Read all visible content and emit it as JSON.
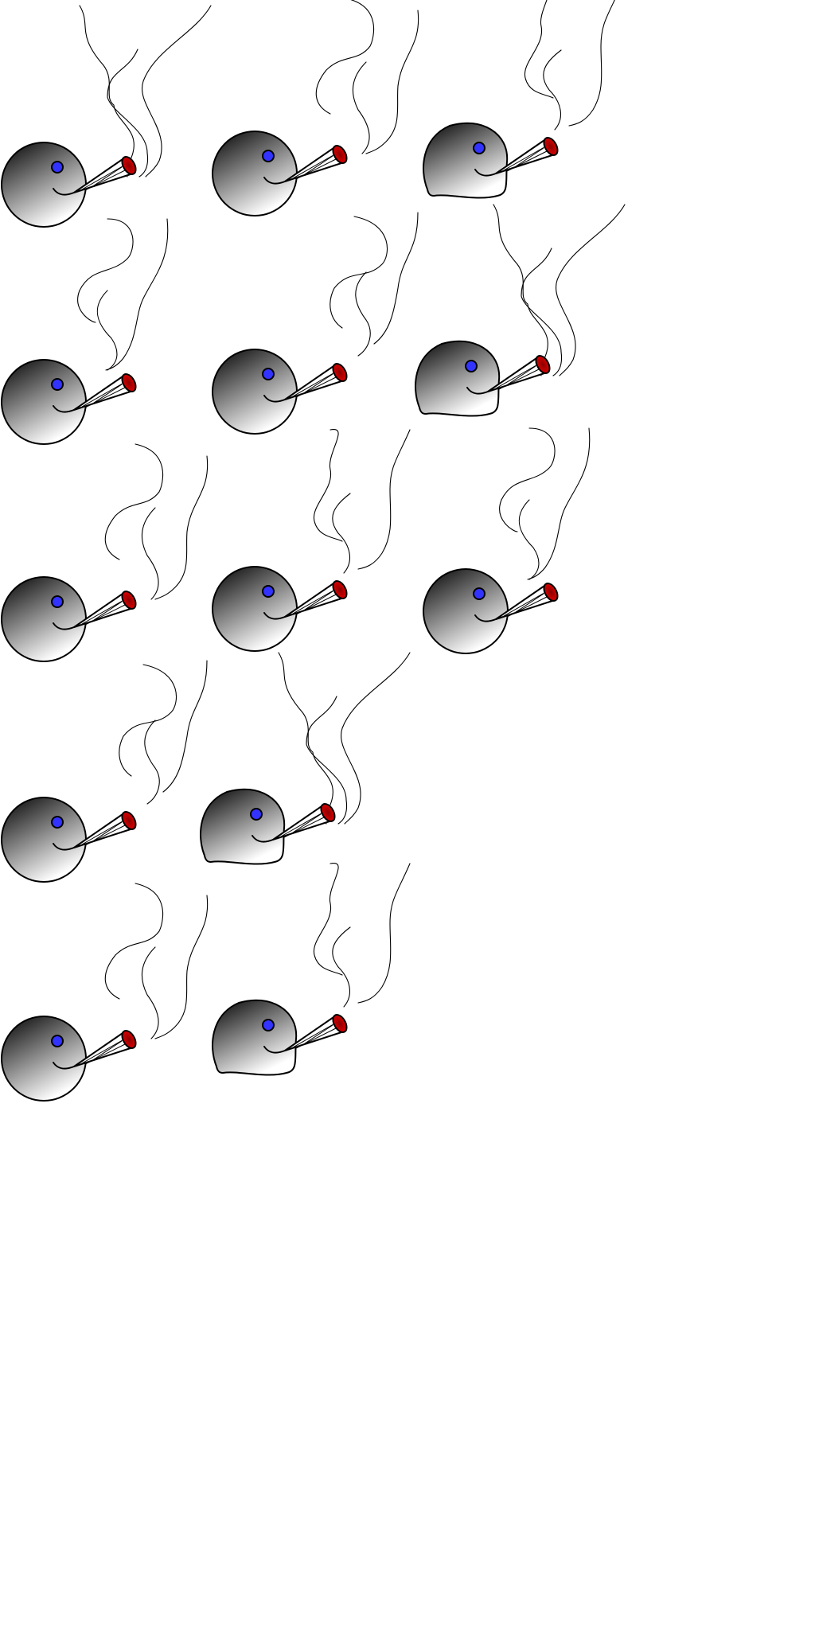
{
  "colors": {
    "background": "#ffffff",
    "head_top": "#000000",
    "head_bottom": "#ffffff",
    "eye": "#3333ff",
    "ember": "#cc0000",
    "ember_dark": "#550000",
    "paper": "#ffffff",
    "outline": "#000000"
  },
  "figure_count": 13,
  "figure_icon": "smoking-face-icon"
}
